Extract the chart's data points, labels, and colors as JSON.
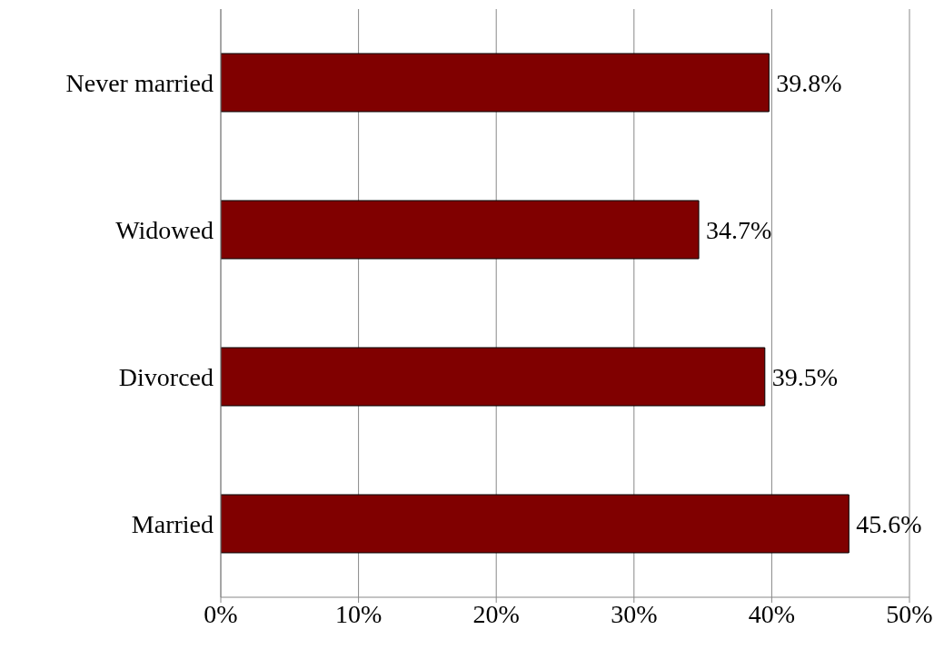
{
  "chart_data": {
    "type": "bar",
    "orientation": "horizontal",
    "categories": [
      "Never married",
      "Widowed",
      "Divorced",
      "Married"
    ],
    "values": [
      39.8,
      34.7,
      39.5,
      45.6
    ],
    "value_labels": [
      "39.8%",
      "34.7%",
      "39.5%",
      "45.6%"
    ],
    "color": "#800000",
    "xlim": [
      0,
      50
    ],
    "xticks": [
      {
        "value": 0,
        "label": "0%"
      },
      {
        "value": 10,
        "label": "10%"
      },
      {
        "value": 20,
        "label": "20%"
      },
      {
        "value": 30,
        "label": "30%"
      },
      {
        "value": 40,
        "label": "40%"
      },
      {
        "value": 50,
        "label": "50%"
      }
    ],
    "grid": "x",
    "legend": false
  }
}
